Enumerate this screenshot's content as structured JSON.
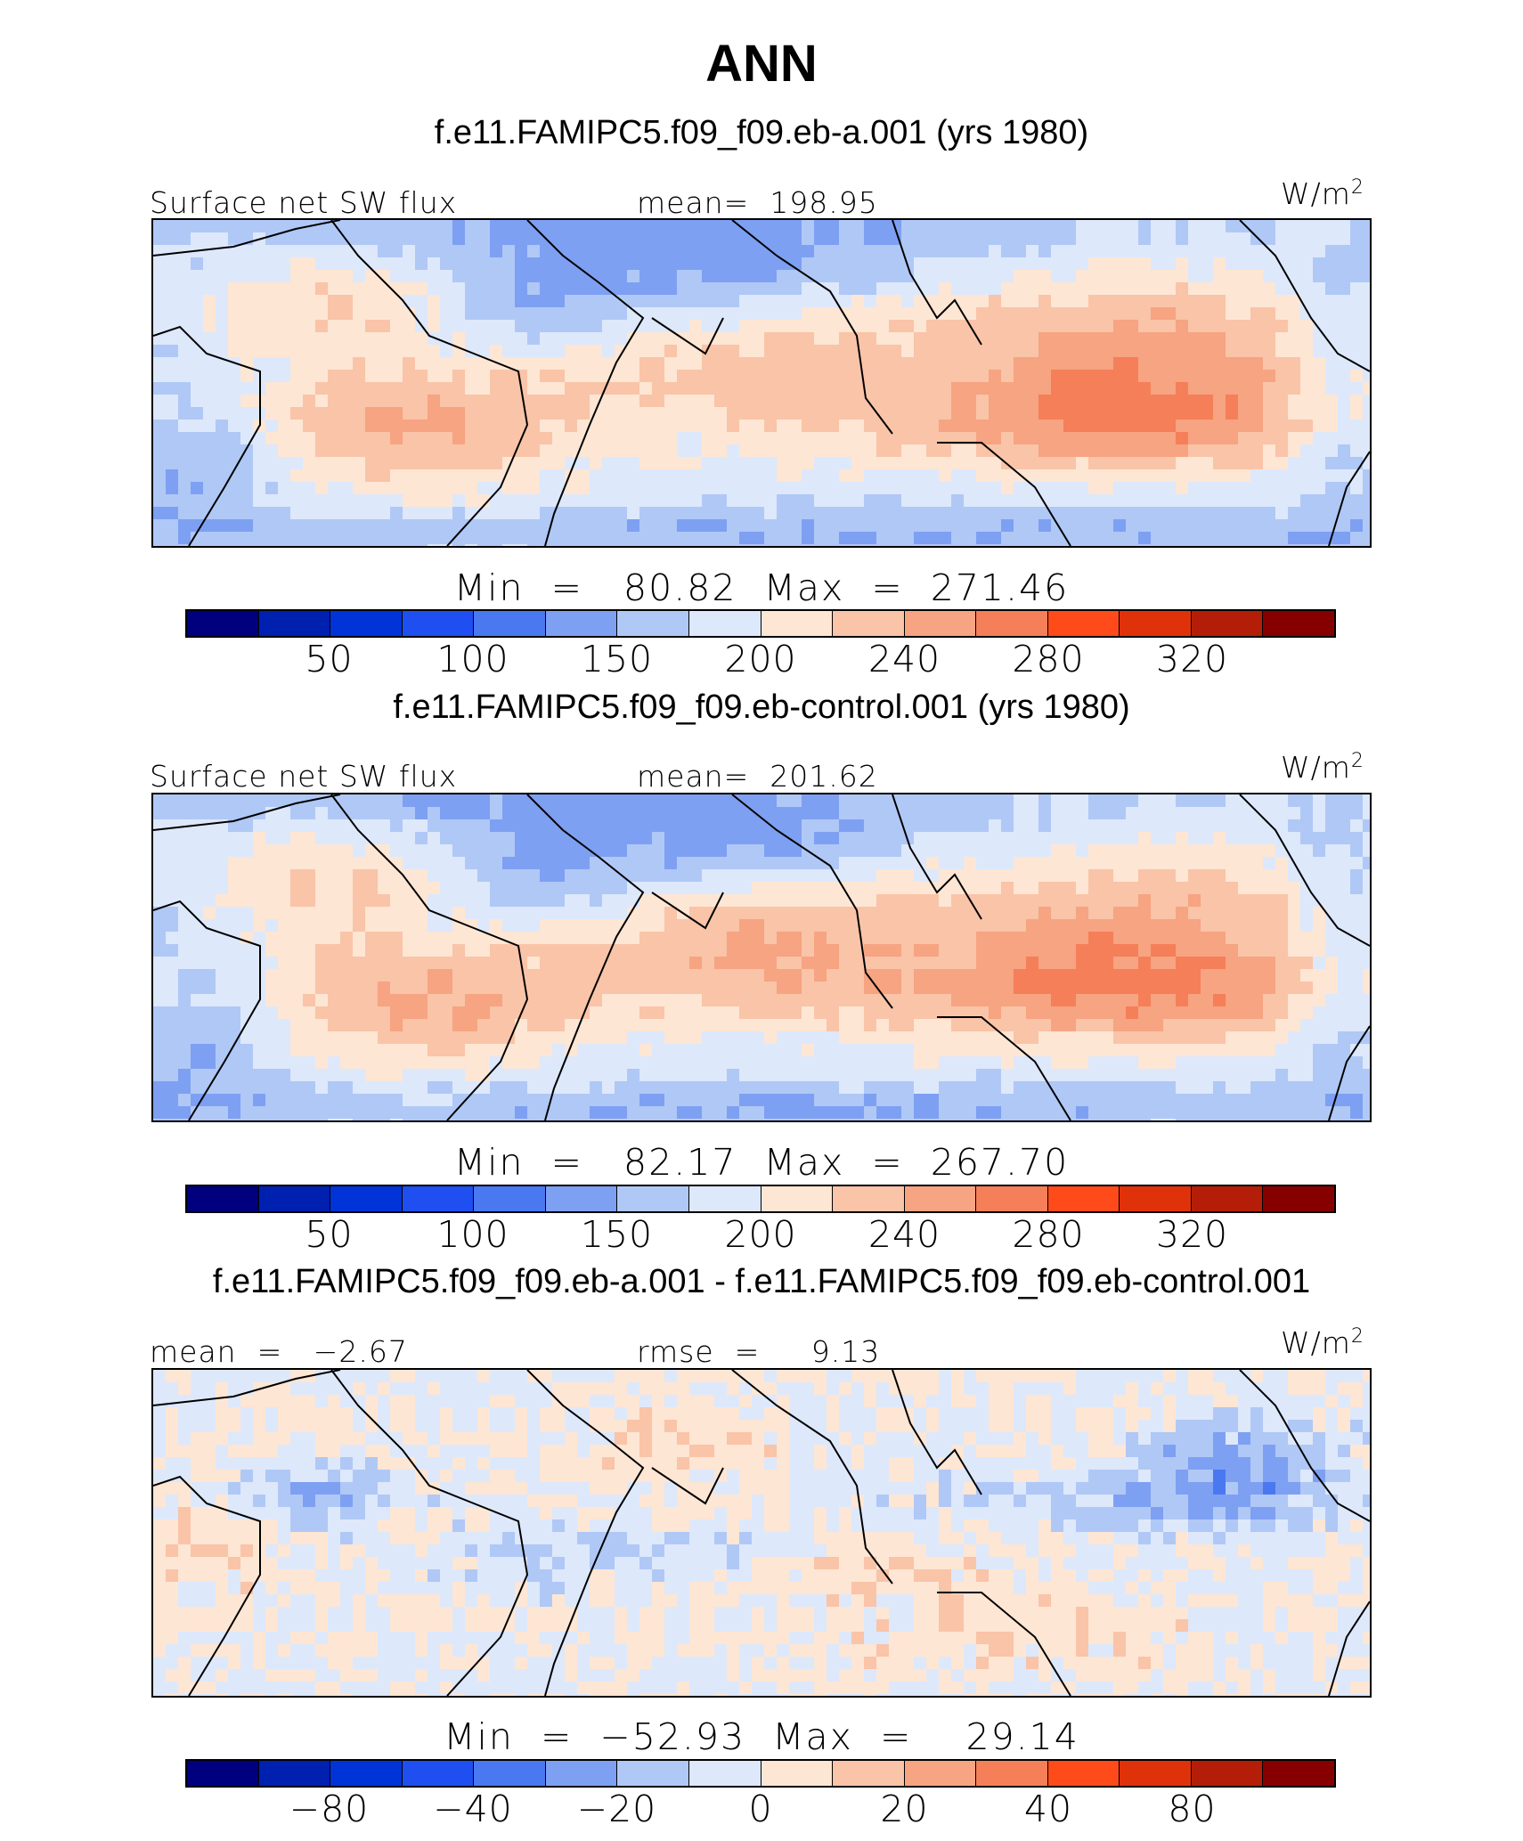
{
  "figure": {
    "title": "ANN"
  },
  "colors": {
    "palette": [
      "#00007f",
      "#0020b0",
      "#0034d8",
      "#1f4ff0",
      "#4a78f0",
      "#7ea0f2",
      "#b0c8f6",
      "#dde8fb",
      "#fde6d4",
      "#f9c4a8",
      "#f6a482",
      "#f57f58",
      "#ff4a1a",
      "#e0320a",
      "#b41e08",
      "#860000"
    ]
  },
  "chart_data": [
    {
      "type": "heatmap",
      "title": "f.e11.FAMIPC5.f09_f09.eb-a.001 (yrs 1980)",
      "left_label": "Surface net SW flux",
      "center_label": "mean=  198.95",
      "units_base": "W/m",
      "units_exp": "2",
      "variable": "Surface net SW flux",
      "mean": 198.95,
      "min": 80.82,
      "max": 271.46,
      "minmax_text": "Min  =   80.82  Max  =  271.46",
      "colorbar_ticks": [
        "50",
        "100",
        "150",
        "200",
        "240",
        "280",
        "320"
      ],
      "colorbar_levels": [
        0,
        25,
        50,
        75,
        100,
        125,
        150,
        175,
        200,
        220,
        240,
        260,
        280,
        300,
        320,
        340,
        360
      ]
    },
    {
      "type": "heatmap",
      "title": "f.e11.FAMIPC5.f09_f09.eb-control.001 (yrs 1980)",
      "left_label": "Surface net SW flux",
      "center_label": "mean=  201.62",
      "units_base": "W/m",
      "units_exp": "2",
      "variable": "Surface net SW flux",
      "mean": 201.62,
      "min": 82.17,
      "max": 267.7,
      "minmax_text": "Min  =   82.17  Max  =  267.70",
      "colorbar_ticks": [
        "50",
        "100",
        "150",
        "200",
        "240",
        "280",
        "320"
      ],
      "colorbar_levels": [
        0,
        25,
        50,
        75,
        100,
        125,
        150,
        175,
        200,
        220,
        240,
        260,
        280,
        300,
        320,
        340,
        360
      ]
    },
    {
      "type": "heatmap",
      "title": "f.e11.FAMIPC5.f09_f09.eb-a.001 - f.e11.FAMIPC5.f09_f09.eb-control.001",
      "left_label": "mean  =   −2.67",
      "center_label": "rmse  =     9.13",
      "units_base": "W/m",
      "units_exp": "2",
      "mean": -2.67,
      "rmse": 9.13,
      "min": -52.93,
      "max": 29.14,
      "minmax_text": "Min  =  −52.93  Max  =    29.14",
      "colorbar_ticks": [
        "−80",
        "−40",
        "−20",
        "0",
        "20",
        "40",
        "80"
      ]
    }
  ]
}
